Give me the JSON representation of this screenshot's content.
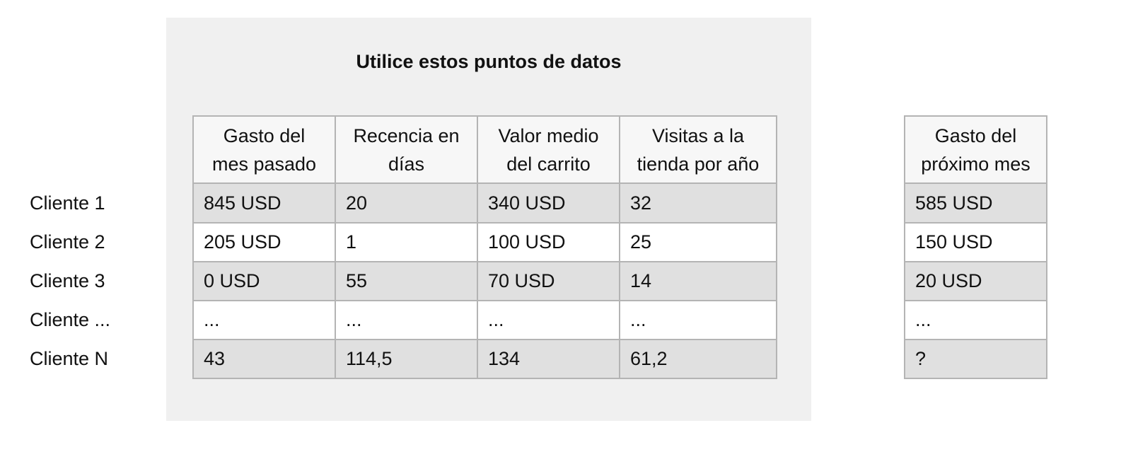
{
  "title": "Utilice estos puntos de datos",
  "table": {
    "header": [
      [
        "Gasto del",
        "mes pasado"
      ],
      [
        "Recencia en",
        "días"
      ],
      [
        "Valor medio",
        "del carrito"
      ],
      [
        "Visitas a la",
        "tienda por año"
      ]
    ],
    "row_labels": [
      "Cliente 1",
      "Cliente 2",
      "Cliente 3",
      "Cliente ...",
      "Cliente N"
    ],
    "rows": [
      [
        "845 USD",
        "20",
        "340 USD",
        "32"
      ],
      [
        "205 USD",
        "1",
        "100 USD",
        "25"
      ],
      [
        "0 USD",
        "55",
        "70 USD",
        "14"
      ],
      [
        "...",
        "...",
        "...",
        "..."
      ],
      [
        "43",
        "114,5",
        "134",
        "61,2"
      ]
    ]
  },
  "target": {
    "header": [
      "Gasto del",
      "próximo mes"
    ],
    "values": [
      "585 USD",
      "150 USD",
      "20 USD",
      "...",
      "?"
    ]
  }
}
